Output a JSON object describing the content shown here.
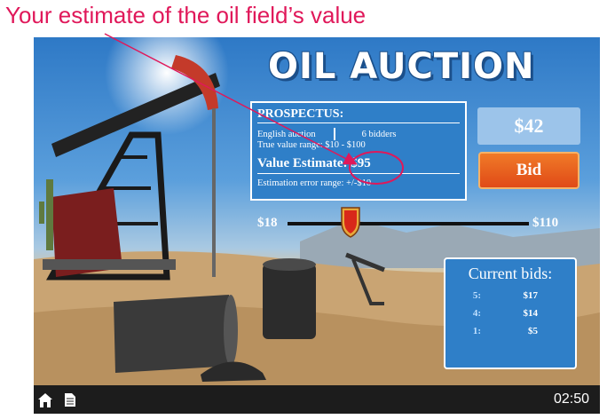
{
  "annotation": {
    "text": "Your estimate of the oil field’s value",
    "color": "#e0185a"
  },
  "game": {
    "title": "OIL AUCTION",
    "prospectus": {
      "title": "PROSPECTUS:",
      "auction_type": "English auction",
      "bidders": "6 bidders",
      "true_value_range": "True value range: $10 - $100",
      "value_estimate": "Value Estimate: $95",
      "error_range": "Estimation error range: +/-$10"
    },
    "bid_display": "$42",
    "bid_button": "Bid",
    "slider": {
      "min_label": "$18",
      "max_label": "$110",
      "min": 18,
      "max": 110,
      "value": 42
    },
    "current_bids": {
      "title": "Current bids:",
      "rows": [
        {
          "rank": "5:",
          "amount": "$17"
        },
        {
          "rank": "4:",
          "amount": "$14"
        },
        {
          "rank": "1:",
          "amount": "$5"
        }
      ]
    }
  },
  "bottom_bar": {
    "timer": "02:50",
    "icons": [
      "home-icon",
      "document-icon"
    ]
  },
  "colors": {
    "panel_blue": "#2f7fc8",
    "bid_orange": "#e04a17",
    "annotation_pink": "#e0185a"
  }
}
